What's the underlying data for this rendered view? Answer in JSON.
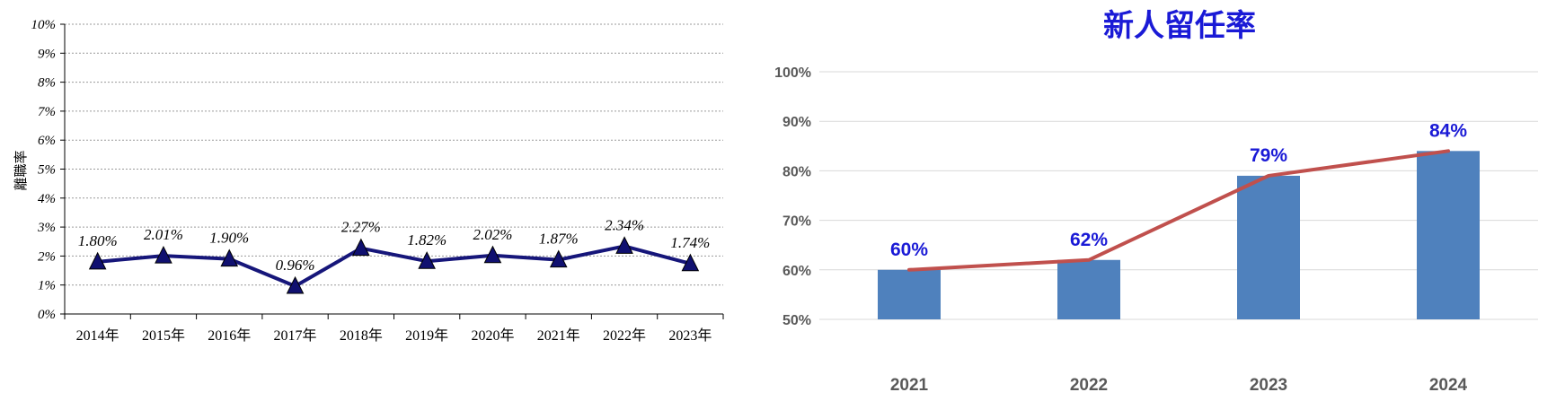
{
  "chart_data": [
    {
      "type": "line",
      "title": "",
      "xlabel": "",
      "ylabel": "離職率",
      "categories": [
        "2014年",
        "2015年",
        "2016年",
        "2017年",
        "2018年",
        "2019年",
        "2020年",
        "2021年",
        "2022年",
        "2023年"
      ],
      "series": [
        {
          "values": [
            1.8,
            2.01,
            1.9,
            0.96,
            2.27,
            1.82,
            2.02,
            1.87,
            2.34,
            1.74
          ]
        }
      ],
      "data_labels": [
        "1.80%",
        "2.01%",
        "1.90%",
        "0.96%",
        "2.27%",
        "1.82%",
        "2.02%",
        "1.87%",
        "2.34%",
        "1.74%"
      ],
      "yticks": [
        "0%",
        "1%",
        "2%",
        "3%",
        "4%",
        "5%",
        "6%",
        "7%",
        "8%",
        "9%",
        "10%"
      ],
      "ylim": [
        0,
        10
      ],
      "grid": true,
      "marker": "triangle",
      "colors": {
        "line": "#16167a",
        "marker": "#101070",
        "grid": "#9a9a9a",
        "axis": "#000000"
      }
    },
    {
      "type": "bar",
      "title": "新人留任率",
      "xlabel": "",
      "ylabel": "",
      "categories": [
        "2021",
        "2022",
        "2023",
        "2024"
      ],
      "values": [
        60,
        62,
        79,
        84
      ],
      "line_overlay": [
        60,
        62,
        79,
        84
      ],
      "data_labels": [
        "60%",
        "62%",
        "79%",
        "84%"
      ],
      "yticks": [
        "50%",
        "60%",
        "70%",
        "80%",
        "90%",
        "100%"
      ],
      "ylim": [
        50,
        100
      ],
      "grid": true,
      "colors": {
        "bar": "#4f81bd",
        "line": "#c0504d",
        "title": "#1a1ad6",
        "label": "#1a1ad6",
        "tick": "#595959",
        "grid": "#d9d9d9"
      }
    }
  ]
}
